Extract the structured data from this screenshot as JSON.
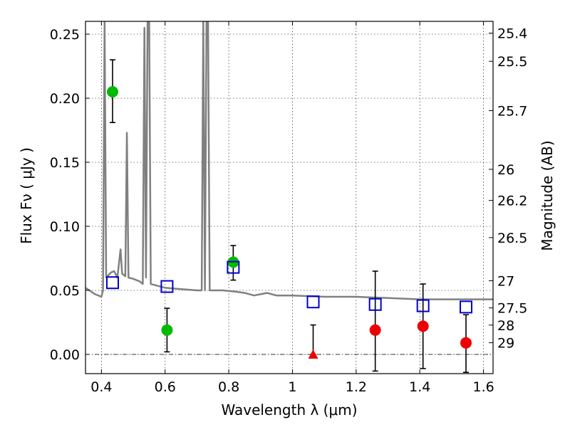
{
  "chart_data": {
    "type": "scatter",
    "title": "",
    "xlabel": "Wavelength  λ (μm)",
    "ylabel": "Flux  Fν  ( μJy )",
    "y2label": "Magnitude (AB)",
    "xlim": [
      0.35,
      1.63
    ],
    "ylim": [
      -0.015,
      0.26
    ],
    "grid": true,
    "x_ticks": [
      0.4,
      0.6,
      0.8,
      1.0,
      1.2,
      1.4,
      1.6
    ],
    "x_tick_labels": [
      "0.4",
      "0.6",
      "0.8",
      "1",
      "1.2",
      "1.4",
      "1.6"
    ],
    "y_ticks": [
      0.0,
      0.05,
      0.1,
      0.15,
      0.2,
      0.25
    ],
    "y_tick_labels": [
      "0.00",
      "0.05",
      "0.10",
      "0.15",
      "0.20",
      "0.25"
    ],
    "y2_ticks": [
      {
        "label": "25.4",
        "flux": 0.2508
      },
      {
        "label": "25.5",
        "flux": 0.2288
      },
      {
        "label": "25.7",
        "flux": 0.1903
      },
      {
        "label": "26",
        "flux": 0.1445
      },
      {
        "label": "26.2",
        "flux": 0.1202
      },
      {
        "label": "26.5",
        "flux": 0.0912
      },
      {
        "label": "27",
        "flux": 0.0575
      },
      {
        "label": "27.5",
        "flux": 0.0363
      },
      {
        "label": "28",
        "flux": 0.0229
      },
      {
        "label": "29",
        "flux": 0.0091
      }
    ],
    "series": [
      {
        "kind": "line",
        "color": "#808080",
        "points": [
          [
            0.35,
            0.052
          ],
          [
            0.38,
            0.047
          ],
          [
            0.4,
            0.045
          ],
          [
            0.405,
            0.05
          ],
          [
            0.41,
            0.26
          ],
          [
            0.415,
            0.06
          ],
          [
            0.43,
            0.064
          ],
          [
            0.44,
            0.065
          ],
          [
            0.45,
            0.06
          ],
          [
            0.46,
            0.082
          ],
          [
            0.465,
            0.063
          ],
          [
            0.475,
            0.061
          ],
          [
            0.48,
            0.173
          ],
          [
            0.485,
            0.06
          ],
          [
            0.5,
            0.059
          ],
          [
            0.52,
            0.057
          ],
          [
            0.53,
            0.055
          ],
          [
            0.535,
            0.255
          ],
          [
            0.54,
            0.06
          ],
          [
            0.545,
            0.26
          ],
          [
            0.55,
            0.26
          ],
          [
            0.555,
            0.055
          ],
          [
            0.57,
            0.054
          ],
          [
            0.6,
            0.052
          ],
          [
            0.65,
            0.051
          ],
          [
            0.7,
            0.05
          ],
          [
            0.715,
            0.05
          ],
          [
            0.72,
            0.26
          ],
          [
            0.725,
            0.05
          ],
          [
            0.73,
            0.26
          ],
          [
            0.735,
            0.26
          ],
          [
            0.74,
            0.05
          ],
          [
            0.78,
            0.05
          ],
          [
            0.82,
            0.049
          ],
          [
            0.85,
            0.048
          ],
          [
            0.88,
            0.046
          ],
          [
            0.9,
            0.047
          ],
          [
            0.92,
            0.048
          ],
          [
            0.95,
            0.046
          ],
          [
            1.0,
            0.046
          ],
          [
            1.1,
            0.045
          ],
          [
            1.2,
            0.045
          ],
          [
            1.3,
            0.044
          ],
          [
            1.4,
            0.043
          ],
          [
            1.5,
            0.043
          ],
          [
            1.63,
            0.043
          ]
        ]
      },
      {
        "kind": "points",
        "marker": "circle",
        "color": "#00bb00",
        "points": [
          {
            "x": 0.435,
            "y": 0.205,
            "ylo": 0.181,
            "yhi": 0.23
          },
          {
            "x": 0.606,
            "y": 0.019,
            "ylo": 0.002,
            "yhi": 0.036
          },
          {
            "x": 0.814,
            "y": 0.072,
            "ylo": 0.058,
            "yhi": 0.085
          }
        ]
      },
      {
        "kind": "points",
        "marker": "circle",
        "color": "#ee0000",
        "points": [
          {
            "x": 1.26,
            "y": 0.019,
            "ylo": -0.013,
            "yhi": 0.065
          },
          {
            "x": 1.41,
            "y": 0.022,
            "ylo": -0.011,
            "yhi": 0.055
          },
          {
            "x": 1.545,
            "y": 0.009,
            "ylo": -0.014,
            "yhi": 0.031
          }
        ]
      },
      {
        "kind": "points",
        "marker": "triangle",
        "color": "#ee0000",
        "points": [
          {
            "x": 1.065,
            "y": 0.0,
            "ylo": 0.0,
            "yhi": 0.023
          }
        ]
      },
      {
        "kind": "points",
        "marker": "square-open",
        "color": "#0000cc",
        "points": [
          {
            "x": 0.435,
            "y": 0.056
          },
          {
            "x": 0.606,
            "y": 0.053
          },
          {
            "x": 0.814,
            "y": 0.068
          },
          {
            "x": 1.065,
            "y": 0.041
          },
          {
            "x": 1.26,
            "y": 0.039
          },
          {
            "x": 1.41,
            "y": 0.038
          },
          {
            "x": 1.545,
            "y": 0.037
          }
        ]
      }
    ]
  }
}
